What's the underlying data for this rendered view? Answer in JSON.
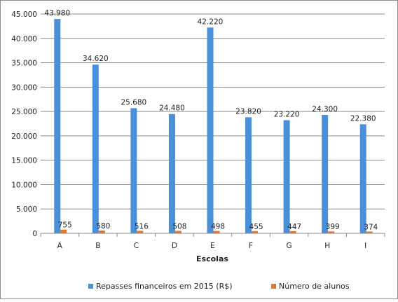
{
  "chart_data": {
    "type": "bar",
    "xlabel": "Escolas",
    "ylabel": "",
    "title": "",
    "categories": [
      "A",
      "B",
      "C",
      "D",
      "E",
      "F",
      "G",
      "H",
      "I"
    ],
    "ylim": [
      0,
      45000
    ],
    "yticks": [
      0,
      5000,
      10000,
      15000,
      20000,
      25000,
      30000,
      35000,
      40000,
      45000
    ],
    "ytick_labels": [
      "0",
      "5.000",
      "10.000",
      "15.000",
      "20.000",
      "25.000",
      "30.000",
      "35.000",
      "40.000",
      "45.000"
    ],
    "grid": true,
    "legend_position": "bottom",
    "series": [
      {
        "name": "Repasses financeiros em 2015 (R$)",
        "color": "#4a90d9",
        "values": [
          43980,
          34620,
          25680,
          24480,
          42220,
          23820,
          23220,
          24300,
          22380
        ],
        "labels": [
          "43.980",
          "34.620",
          "25.680",
          "24.480",
          "42.220",
          "23.820",
          "23.220",
          "24.300",
          "22.380"
        ]
      },
      {
        "name": "Número de alunos",
        "color": "#e8762d",
        "values": [
          755,
          580,
          516,
          508,
          498,
          455,
          447,
          399,
          374
        ],
        "labels": [
          "755",
          "580",
          "516",
          "508",
          "498",
          "455",
          "447",
          "399",
          "374"
        ]
      }
    ]
  }
}
